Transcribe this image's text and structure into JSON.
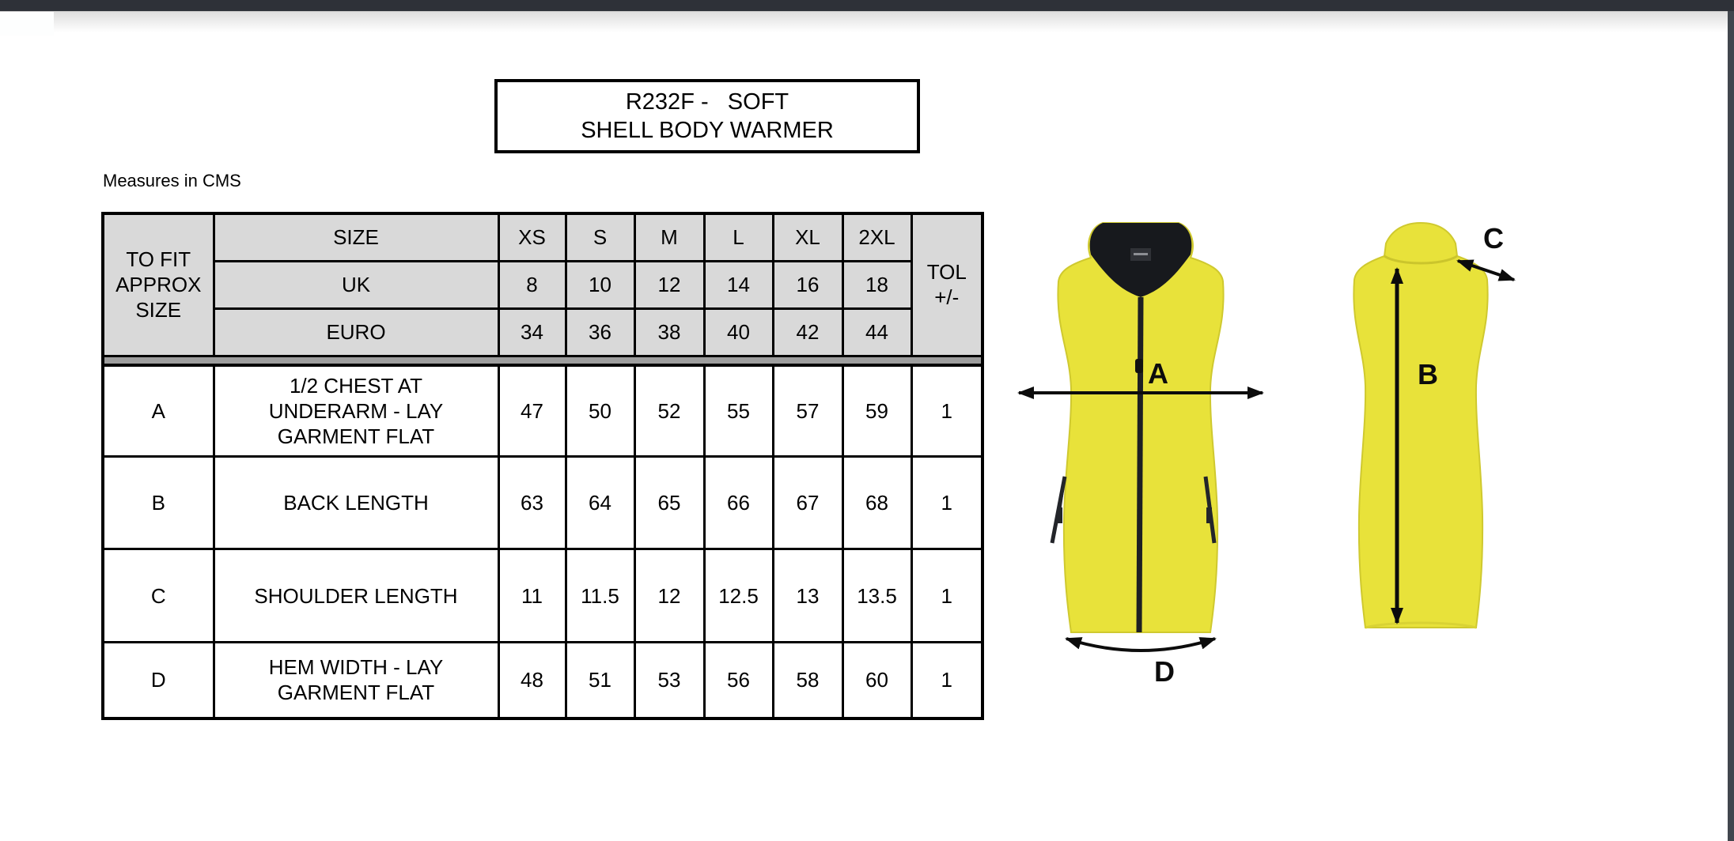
{
  "page": {
    "title_line1": "R232F -   SOFT",
    "title_line2": "SHELL BODY WARMER",
    "measures_note": "Measures in CMS"
  },
  "table": {
    "corner_header": "TO FIT\nAPPROX\nSIZE",
    "tol_header": "TOL\n+/-",
    "header_rows": [
      {
        "label": "SIZE",
        "values": [
          "XS",
          "S",
          "M",
          "L",
          "XL",
          "2XL"
        ]
      },
      {
        "label": "UK",
        "values": [
          "8",
          "10",
          "12",
          "14",
          "16",
          "18"
        ]
      },
      {
        "label": "EURO",
        "values": [
          "34",
          "36",
          "38",
          "40",
          "42",
          "44"
        ]
      }
    ],
    "body_rows": [
      {
        "key": "A",
        "label": "1/2 CHEST AT\nUNDERARM - LAY\nGARMENT FLAT",
        "values": [
          "47",
          "50",
          "52",
          "55",
          "57",
          "59"
        ],
        "tol": "1"
      },
      {
        "key": "B",
        "label": "BACK LENGTH",
        "values": [
          "63",
          "64",
          "65",
          "66",
          "67",
          "68"
        ],
        "tol": "1"
      },
      {
        "key": "C",
        "label": "SHOULDER LENGTH",
        "values": [
          "11",
          "11.5",
          "12",
          "12.5",
          "13",
          "13.5"
        ],
        "tol": "1"
      },
      {
        "key": "D",
        "label": "HEM WIDTH - LAY\nGARMENT FLAT",
        "values": [
          "48",
          "51",
          "53",
          "56",
          "58",
          "60"
        ],
        "tol": "1"
      }
    ]
  },
  "diagram": {
    "front": {
      "chest_label": "A",
      "hem_label": "D"
    },
    "back": {
      "back_length_label": "B",
      "shoulder_label": "C"
    }
  },
  "colors": {
    "vest_yellow": "#e8e23a",
    "vest_edge": "#cfc92f",
    "collar_black": "#17191d",
    "zipper_black": "#1d1f23",
    "arrow_black": "#0c0c0c",
    "table_header_bg": "#d9d9d9",
    "table_divider_gray": "#9e9e9e",
    "topbar_dark": "#2e3138"
  }
}
